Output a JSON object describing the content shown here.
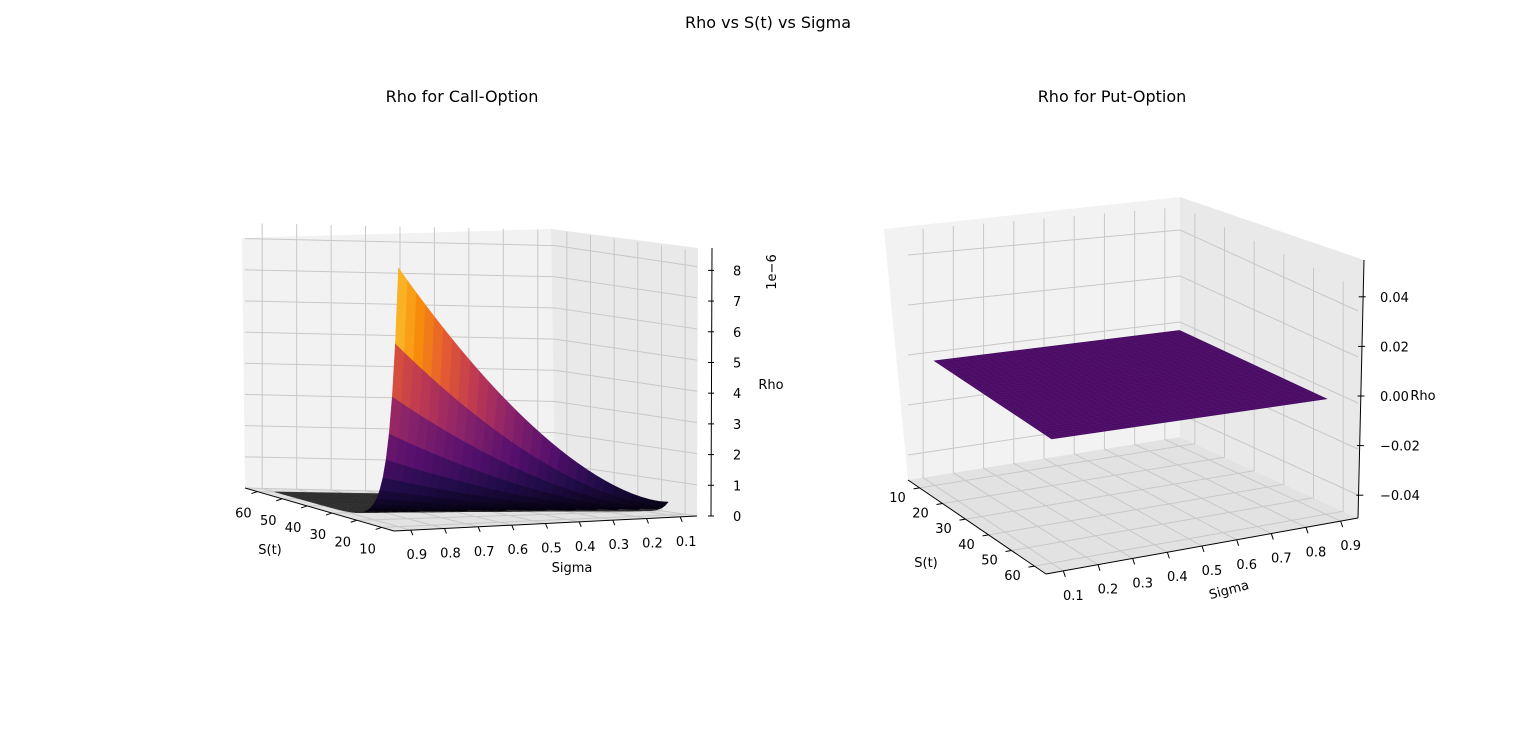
{
  "figure": {
    "suptitle": "Rho vs S(t) vs Sigma"
  },
  "chart_data": [
    {
      "type": "surface3d",
      "title": "Rho for Call-Option",
      "xlabel": "S(t)",
      "ylabel": "Sigma",
      "zlabel": "Rho",
      "z_offset_label": "1e−6",
      "colormap": "inferno",
      "s_ticks": [
        "60",
        "50",
        "40",
        "30",
        "20",
        "10"
      ],
      "sigma_ticks": [
        "0.9",
        "0.8",
        "0.7",
        "0.6",
        "0.5",
        "0.4",
        "0.3",
        "0.2",
        "0.1"
      ],
      "z_ticks": [
        "8",
        "7",
        "6",
        "5",
        "4",
        "3",
        "2",
        "1",
        "0"
      ],
      "s_range": [
        5,
        65
      ],
      "sigma_range": [
        0.05,
        0.95
      ],
      "zlim": [
        0,
        8.5
      ],
      "grid": true
    },
    {
      "type": "surface3d",
      "title": "Rho for Put-Option",
      "xlabel": "S(t)",
      "ylabel": "Sigma",
      "zlabel": "Rho",
      "colormap": "inferno",
      "s_ticks": [
        "10",
        "20",
        "30",
        "40",
        "50",
        "60"
      ],
      "sigma_ticks": [
        "0.1",
        "0.2",
        "0.3",
        "0.4",
        "0.5",
        "0.6",
        "0.7",
        "0.8",
        "0.9"
      ],
      "z_ticks": [
        "0.04",
        "0.02",
        "0.00",
        "−0.02",
        "−0.04"
      ],
      "s_range": [
        5,
        65
      ],
      "sigma_range": [
        0.05,
        0.95
      ],
      "zlim": [
        -0.05,
        0.05
      ],
      "surface_value": 0.0,
      "grid": true
    }
  ]
}
